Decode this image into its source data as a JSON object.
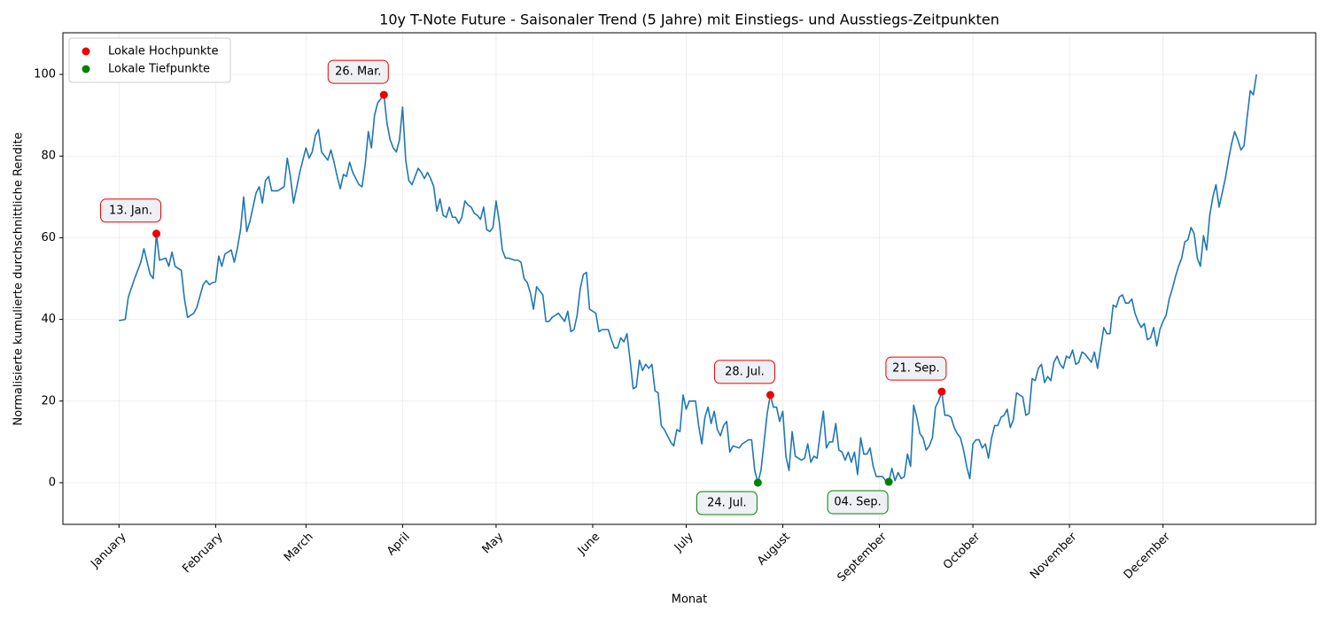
{
  "chart_data": {
    "type": "line",
    "title": "10y T-Note Future - Saisonaler Trend (5 Jahre) mit Einstiegs- und Ausstiegs-Zeitpunkten",
    "xlabel": "Monat",
    "ylabel": "Normalisierte kumulierte durchschnittliche Rendite",
    "xlim": [
      -18,
      384
    ],
    "ylim": [
      -10.2,
      110.2
    ],
    "xticks": [
      {
        "value": 0,
        "label": "January"
      },
      {
        "value": 31,
        "label": "February"
      },
      {
        "value": 60,
        "label": "March"
      },
      {
        "value": 91,
        "label": "April"
      },
      {
        "value": 121,
        "label": "May"
      },
      {
        "value": 152,
        "label": "June"
      },
      {
        "value": 182,
        "label": "July"
      },
      {
        "value": 213,
        "label": "August"
      },
      {
        "value": 244,
        "label": "September"
      },
      {
        "value": 274,
        "label": "October"
      },
      {
        "value": 305,
        "label": "November"
      },
      {
        "value": 335,
        "label": "December"
      }
    ],
    "yticks": [
      0,
      20,
      40,
      60,
      80,
      100
    ],
    "grid": true,
    "legend": "upper left",
    "series": [
      {
        "type": "line",
        "color": "#1f77b4",
        "x": [
          0,
          2,
          3,
          5,
          7,
          8,
          10,
          11,
          12,
          13,
          15,
          16,
          17,
          18,
          20,
          21,
          22,
          24,
          25,
          27,
          28,
          29,
          30,
          31,
          32,
          33,
          34,
          36,
          37,
          38,
          39,
          40,
          41,
          42,
          44,
          45,
          46,
          47,
          48,
          49,
          51,
          52,
          53,
          54,
          55,
          56,
          58,
          59,
          60,
          61,
          62,
          63,
          64,
          65,
          67,
          68,
          69,
          70,
          71,
          72,
          73,
          74,
          75,
          77,
          78,
          79,
          80,
          81,
          82,
          83,
          85,
          86,
          87,
          88,
          89,
          90,
          91,
          92,
          93,
          94,
          95,
          96,
          97,
          98,
          99,
          100,
          101,
          102,
          103,
          104,
          105,
          106,
          107,
          108,
          109,
          110,
          111,
          112,
          113,
          114,
          115,
          116,
          117,
          118,
          119,
          120,
          121,
          122,
          123,
          124,
          125,
          127,
          128,
          129,
          130,
          131,
          132,
          133,
          134,
          136,
          137,
          138,
          139,
          141,
          142,
          143,
          144,
          145,
          146,
          147,
          148,
          149,
          150,
          151,
          152,
          153,
          154,
          155,
          157,
          158,
          159,
          160,
          161,
          162,
          163,
          164,
          165,
          166,
          167,
          168,
          169,
          170,
          171,
          172,
          173,
          174,
          175,
          176,
          177,
          178,
          179,
          180,
          181,
          182,
          183,
          184,
          185,
          186,
          187,
          188,
          189,
          190,
          191,
          192,
          193,
          194,
          195,
          196,
          197,
          199,
          200,
          201,
          202,
          203,
          204,
          205,
          206,
          207,
          208,
          209,
          210,
          211,
          212,
          213,
          214,
          215,
          216,
          217,
          218,
          219,
          220,
          221,
          222,
          223,
          224,
          225,
          226,
          227,
          228,
          229,
          230,
          231,
          232,
          233,
          234,
          235,
          236,
          237,
          238,
          239,
          240,
          241,
          242,
          243,
          244,
          245,
          246,
          247,
          248,
          249,
          250,
          251,
          252,
          253,
          254,
          255,
          256,
          257,
          258,
          259,
          260,
          261,
          262,
          263,
          264,
          265,
          266,
          267,
          268,
          269,
          270,
          271,
          272,
          273,
          274,
          275,
          276,
          277,
          278,
          279,
          280,
          281,
          282,
          283,
          284,
          285,
          286,
          287,
          288,
          289,
          290,
          291,
          292,
          293,
          294,
          295,
          296,
          297,
          298,
          299,
          300,
          301,
          302,
          303,
          304,
          305,
          306,
          307,
          308,
          309,
          310,
          311,
          312,
          313,
          314,
          315,
          316,
          317,
          318,
          319,
          320,
          321,
          322,
          323,
          324,
          325,
          326,
          327,
          328,
          329,
          330,
          331,
          332,
          333,
          334,
          335,
          336,
          337,
          338,
          339,
          340,
          341,
          342,
          343,
          344,
          345,
          346,
          347,
          348,
          349,
          350,
          351,
          352,
          353,
          354,
          355,
          356,
          357,
          358,
          359,
          360,
          361,
          362,
          363,
          364,
          365
        ],
        "values": [
          39.7,
          40,
          45.5,
          50,
          54,
          57.3,
          51,
          50,
          61,
          54.5,
          55,
          53,
          56.5,
          53,
          52,
          45,
          40.5,
          41.5,
          43,
          48.5,
          49.5,
          48.5,
          49,
          49.2,
          55.5,
          53,
          56,
          57,
          54,
          57.5,
          62,
          70,
          61.5,
          64,
          71,
          72.5,
          68.5,
          74,
          75,
          71.5,
          71.5,
          72,
          72.5,
          79.5,
          75,
          68.5,
          76,
          79,
          82,
          79.5,
          81,
          85,
          86.5,
          81,
          79,
          81.5,
          78.5,
          75,
          72,
          75.5,
          75,
          78.5,
          76,
          73,
          72.5,
          78,
          86,
          82,
          90,
          93,
          95,
          88,
          84,
          82,
          81,
          84,
          92,
          79,
          74,
          73,
          75,
          77,
          76,
          74.5,
          76,
          74.5,
          72.5,
          66.5,
          69.5,
          65.5,
          65,
          67.5,
          65,
          65,
          63.5,
          65,
          69,
          68,
          67.5,
          66,
          65.5,
          64.5,
          67.5,
          62,
          61.5,
          62.5,
          69,
          64,
          57,
          55,
          55,
          54.5,
          54.5,
          54,
          50,
          49,
          46.5,
          42.5,
          48,
          46,
          39.5,
          39.5,
          40.5,
          41.5,
          40.5,
          39.5,
          42,
          37,
          37.5,
          41,
          47.5,
          51,
          51.5,
          42.5,
          42,
          41.5,
          37,
          37.5,
          37.5,
          35,
          33,
          33,
          35.5,
          34.5,
          36.5,
          30,
          23,
          23.5,
          30,
          27.5,
          29,
          28,
          29,
          22.5,
          22,
          14,
          13,
          11.5,
          10,
          9,
          13,
          12.5,
          21.5,
          18,
          20,
          20,
          20,
          14,
          9.5,
          16,
          18.5,
          14.5,
          17.5,
          13,
          11.5,
          14,
          15,
          7.5,
          9,
          8.5,
          9.5,
          10,
          10.5,
          10.5,
          3,
          0,
          3,
          10,
          17,
          21.5,
          18.5,
          18.5,
          15,
          17.5,
          6.5,
          3,
          12.5,
          6.5,
          6,
          5.5,
          6,
          9.5,
          5,
          6.5,
          6,
          12,
          17.5,
          8.5,
          10,
          10,
          14.5,
          8,
          7.5,
          5.5,
          7.5,
          5,
          7.5,
          2,
          11,
          7,
          7,
          8.5,
          4,
          1.5,
          1.5,
          1.5,
          0.5,
          0.2,
          3.5,
          0.5,
          2.5,
          1,
          1.5,
          7,
          4,
          19,
          16,
          12,
          11,
          8,
          9,
          11,
          18.5,
          20,
          22.3,
          16.5,
          16.5,
          16,
          13.5,
          12,
          11,
          8,
          4,
          1,
          9.5,
          10.5,
          10.5,
          8.5,
          9.5,
          6,
          11,
          14,
          14,
          16,
          16.5,
          18,
          13.5,
          15.5,
          22,
          21.5,
          21,
          16.5,
          17,
          25.5,
          25,
          28,
          29,
          24.5,
          26,
          25,
          29.5,
          31,
          29,
          28,
          31,
          30.5,
          32.5,
          29,
          29.5,
          32,
          31.5,
          30.5,
          29.5,
          32,
          28,
          33,
          38,
          36.5,
          36.5,
          43.5,
          43,
          45.5,
          46,
          44,
          44,
          45,
          41.5,
          39.5,
          38,
          39,
          35,
          35.5,
          38,
          33.5,
          37.5,
          39.5,
          41,
          45,
          47.5,
          50.5,
          53,
          55,
          59,
          59.5,
          62.5,
          61,
          55,
          53,
          60.5,
          57,
          65.5,
          70,
          73,
          67.5,
          71,
          74.5,
          79,
          83,
          86,
          84,
          81.5,
          82.5,
          89.5,
          96,
          95,
          100
        ]
      },
      {
        "type": "scatter",
        "name": "Lokale Hochpunkte",
        "color": "#ee0000",
        "x": [
          12,
          85,
          209,
          264
        ],
        "values": [
          61,
          95,
          21.5,
          22.3
        ],
        "labels": [
          "13. Jan.",
          "26. Mar.",
          "28. Jul.",
          "21. Sep."
        ]
      },
      {
        "type": "scatter",
        "name": "Lokale Tiefpunkte",
        "color": "#008000",
        "x": [
          205,
          247
        ],
        "values": [
          0,
          0.2
        ],
        "labels": [
          "24. Jul.",
          "04. Sep."
        ]
      }
    ]
  }
}
